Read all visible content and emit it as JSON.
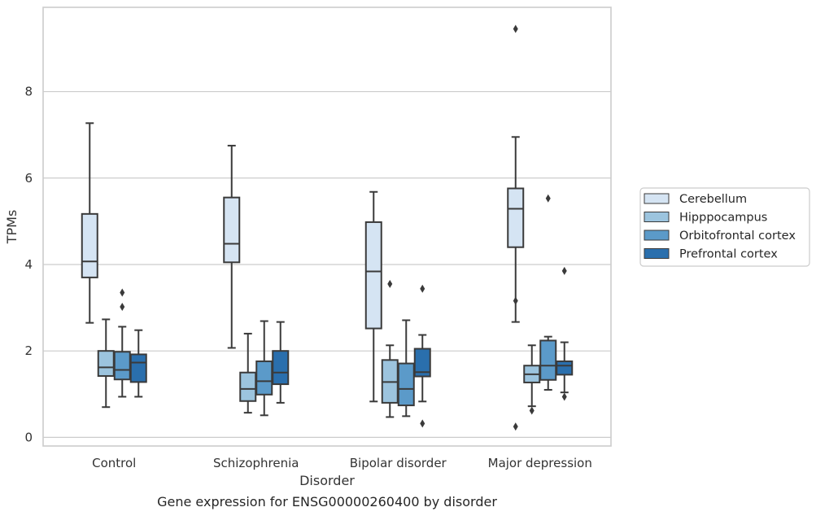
{
  "chart_data": {
    "type": "box",
    "caption": "Gene expression for ENSG00000260400 by disorder",
    "xlabel": "Disorder",
    "ylabel": "TPMs",
    "ylim": [
      -0.2,
      9.95
    ],
    "yticks": [
      0,
      2,
      4,
      6,
      8
    ],
    "grid": true,
    "legend_position": "right",
    "categories": [
      "Control",
      "Schizophrenia",
      "Bipolar disorder",
      "Major depression"
    ],
    "series": [
      {
        "name": "Cerebellum",
        "color": "#d5e4f3",
        "boxes": [
          {
            "whislo": 2.65,
            "q1": 3.7,
            "med": 4.07,
            "q3": 5.17,
            "whishi": 7.27,
            "fliers": []
          },
          {
            "whislo": 2.07,
            "q1": 4.05,
            "med": 4.48,
            "q3": 5.55,
            "whishi": 6.75,
            "fliers": []
          },
          {
            "whislo": 0.83,
            "q1": 2.52,
            "med": 3.84,
            "q3": 4.98,
            "whishi": 5.68,
            "fliers": []
          },
          {
            "whislo": 2.67,
            "q1": 4.4,
            "med": 5.29,
            "q3": 5.76,
            "whishi": 6.95,
            "fliers": [
              9.45,
              3.16,
              0.25
            ]
          }
        ]
      },
      {
        "name": "Hipppocampus",
        "color": "#9cc4de",
        "boxes": [
          {
            "whislo": 0.7,
            "q1": 1.42,
            "med": 1.62,
            "q3": 2.0,
            "whishi": 2.73,
            "fliers": []
          },
          {
            "whislo": 0.57,
            "q1": 0.84,
            "med": 1.12,
            "q3": 1.5,
            "whishi": 2.4,
            "fliers": []
          },
          {
            "whislo": 0.47,
            "q1": 0.8,
            "med": 1.28,
            "q3": 1.79,
            "whishi": 2.13,
            "fliers": [
              3.55
            ]
          },
          {
            "whislo": 0.72,
            "q1": 1.27,
            "med": 1.46,
            "q3": 1.66,
            "whishi": 2.13,
            "fliers": [
              0.62
            ]
          }
        ]
      },
      {
        "name": "Orbitofrontal cortex",
        "color": "#5b9ac9",
        "boxes": [
          {
            "whislo": 0.94,
            "q1": 1.34,
            "med": 1.56,
            "q3": 1.98,
            "whishi": 2.56,
            "fliers": [
              3.35,
              3.02
            ]
          },
          {
            "whislo": 0.51,
            "q1": 0.99,
            "med": 1.3,
            "q3": 1.76,
            "whishi": 2.69,
            "fliers": []
          },
          {
            "whislo": 0.49,
            "q1": 0.74,
            "med": 1.12,
            "q3": 1.71,
            "whishi": 2.71,
            "fliers": []
          },
          {
            "whislo": 1.1,
            "q1": 1.33,
            "med": 1.66,
            "q3": 2.24,
            "whishi": 2.33,
            "fliers": [
              5.53
            ]
          }
        ]
      },
      {
        "name": "Prefrontal cortex",
        "color": "#2a6fad",
        "boxes": [
          {
            "whislo": 0.94,
            "q1": 1.28,
            "med": 1.73,
            "q3": 1.92,
            "whishi": 2.48,
            "fliers": []
          },
          {
            "whislo": 0.8,
            "q1": 1.23,
            "med": 1.5,
            "q3": 2.0,
            "whishi": 2.67,
            "fliers": []
          },
          {
            "whislo": 0.83,
            "q1": 1.41,
            "med": 1.51,
            "q3": 2.05,
            "whishi": 2.37,
            "fliers": [
              3.44,
              0.32
            ]
          },
          {
            "whislo": 1.04,
            "q1": 1.45,
            "med": 1.66,
            "q3": 1.76,
            "whishi": 2.2,
            "fliers": [
              3.85,
              0.94
            ]
          }
        ]
      }
    ],
    "colors": {
      "grid": "#cccccc",
      "axes_border": "#cccccc",
      "box_edge": "#3a3a3a"
    }
  }
}
